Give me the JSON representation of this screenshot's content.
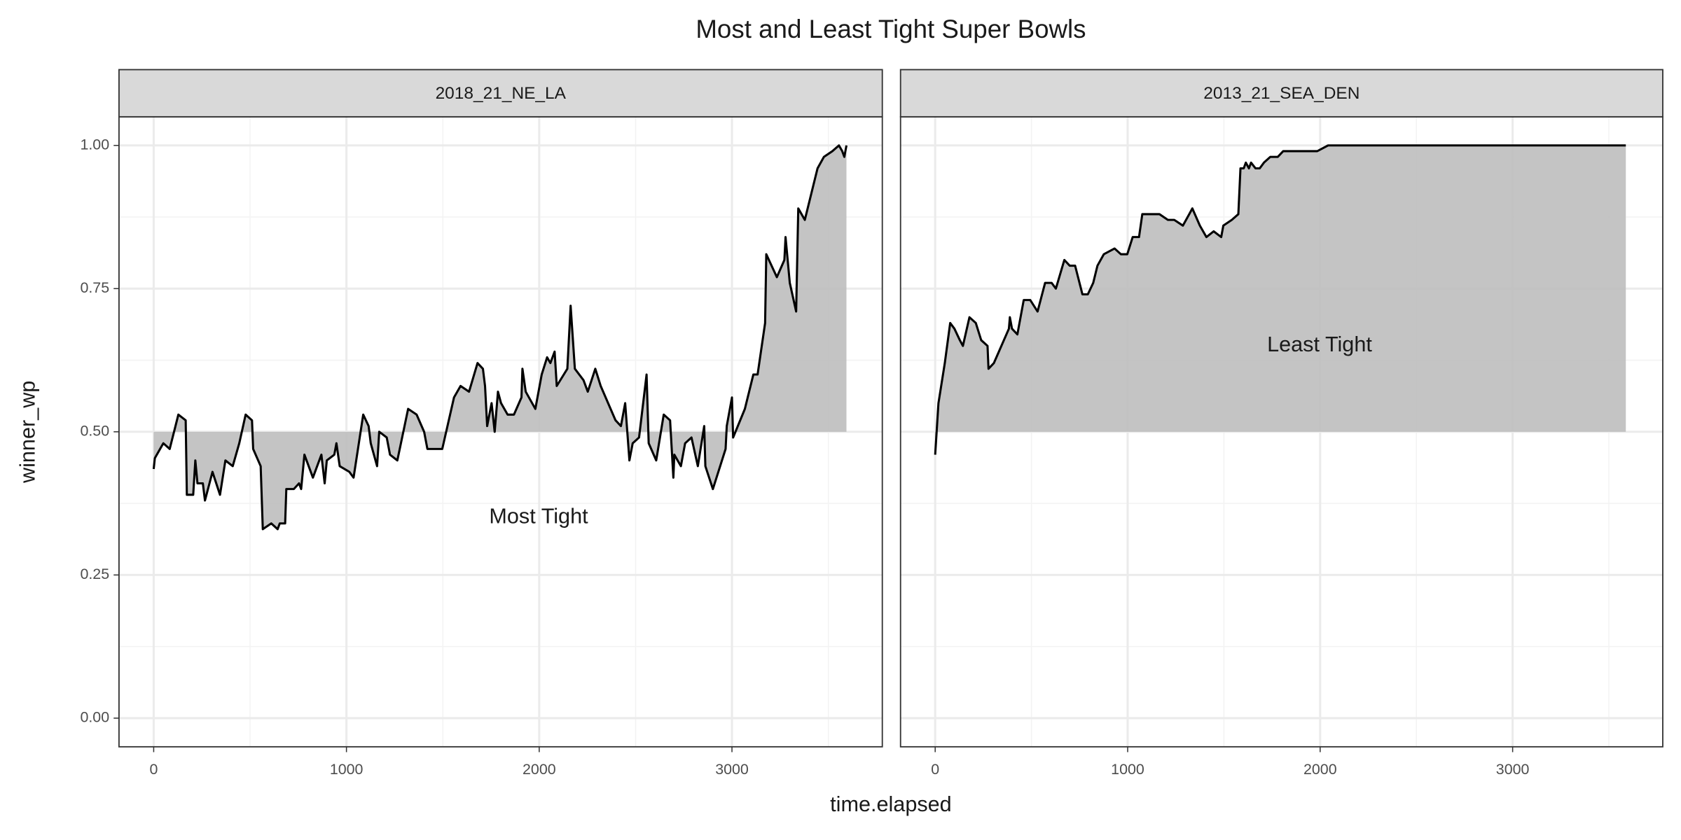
{
  "chart_data": {
    "type": "line",
    "title": "Most and Least Tight Super Bowls",
    "x_label": "time.elapsed",
    "y_label": "winner_wp",
    "xlim": [
      -180,
      3780
    ],
    "xticks": [
      0,
      1000,
      2000,
      3000
    ],
    "ylim": [
      -0.05,
      1.05
    ],
    "yticks": [
      {
        "value": 0,
        "label": "0.00"
      },
      {
        "value": 0.25,
        "label": "0.25"
      },
      {
        "value": 0.5,
        "label": "0.50"
      },
      {
        "value": 0.75,
        "label": "0.75"
      },
      {
        "value": 1,
        "label": "1.00"
      }
    ],
    "grid": true,
    "baseline": 0.5,
    "line_color": "#000000",
    "fill_color": "#bebebe",
    "panels": [
      {
        "title": "2018_21_NE_LA",
        "annotation": {
          "text": "Most Tight",
          "x": 1997,
          "y": 0.35
        },
        "x": [
          0,
          6,
          50,
          83,
          128,
          166,
          172,
          205,
          216,
          227,
          255,
          266,
          305,
          344,
          372,
          410,
          444,
          477,
          510,
          516,
          555,
          566,
          610,
          643,
          654,
          682,
          688,
          727,
          754,
          765,
          782,
          826,
          870,
          887,
          898,
          937,
          948,
          965,
          1015,
          1037,
          1087,
          1115,
          1126,
          1159,
          1170,
          1209,
          1226,
          1264,
          1320,
          1364,
          1403,
          1420,
          1453,
          1497,
          1558,
          1592,
          1636,
          1680,
          1708,
          1719,
          1730,
          1753,
          1769,
          1786,
          1802,
          1836,
          1869,
          1908,
          1913,
          1930,
          1980,
          2013,
          2041,
          2058,
          2080,
          2091,
          2146,
          2163,
          2185,
          2230,
          2252,
          2291,
          2319,
          2396,
          2424,
          2446,
          2468,
          2485,
          2518,
          2557,
          2568,
          2607,
          2646,
          2679,
          2696,
          2701,
          2735,
          2757,
          2790,
          2823,
          2856,
          2862,
          2901,
          2967,
          2973,
          3000,
          3006,
          3067,
          3111,
          3133,
          3172,
          3178,
          3233,
          3272,
          3278,
          3300,
          3333,
          3344,
          3378,
          3422,
          3444,
          3477,
          3521,
          3555,
          3572,
          3583,
          3594
        ],
        "values": [
          0.435,
          0.454,
          0.48,
          0.47,
          0.53,
          0.52,
          0.39,
          0.39,
          0.45,
          0.41,
          0.41,
          0.38,
          0.43,
          0.39,
          0.45,
          0.44,
          0.48,
          0.53,
          0.52,
          0.47,
          0.44,
          0.33,
          0.34,
          0.33,
          0.34,
          0.34,
          0.4,
          0.4,
          0.41,
          0.4,
          0.46,
          0.42,
          0.46,
          0.41,
          0.45,
          0.46,
          0.48,
          0.44,
          0.43,
          0.42,
          0.53,
          0.51,
          0.48,
          0.44,
          0.5,
          0.49,
          0.46,
          0.45,
          0.54,
          0.53,
          0.5,
          0.47,
          0.47,
          0.47,
          0.56,
          0.58,
          0.57,
          0.62,
          0.61,
          0.58,
          0.51,
          0.55,
          0.5,
          0.57,
          0.55,
          0.53,
          0.53,
          0.56,
          0.61,
          0.57,
          0.54,
          0.6,
          0.63,
          0.62,
          0.64,
          0.58,
          0.61,
          0.72,
          0.61,
          0.59,
          0.57,
          0.61,
          0.58,
          0.52,
          0.51,
          0.55,
          0.45,
          0.48,
          0.49,
          0.6,
          0.48,
          0.45,
          0.53,
          0.52,
          0.42,
          0.46,
          0.44,
          0.48,
          0.49,
          0.44,
          0.51,
          0.44,
          0.4,
          0.47,
          0.51,
          0.56,
          0.49,
          0.54,
          0.6,
          0.6,
          0.69,
          0.81,
          0.77,
          0.8,
          0.84,
          0.76,
          0.71,
          0.89,
          0.87,
          0.93,
          0.96,
          0.98,
          0.99,
          1.0,
          0.99,
          0.98,
          1.0
        ]
      },
      {
        "title": "2013_21_SEA_DEN",
        "annotation": {
          "text": "Least Tight",
          "x": 1997,
          "y": 0.65
        },
        "x": [
          0,
          17,
          50,
          78,
          100,
          128,
          144,
          178,
          211,
          239,
          272,
          277,
          305,
          383,
          388,
          399,
          427,
          460,
          494,
          532,
          571,
          605,
          627,
          671,
          699,
          727,
          765,
          793,
          821,
          843,
          876,
          932,
          965,
          998,
          1026,
          1059,
          1076,
          1115,
          1165,
          1209,
          1242,
          1287,
          1320,
          1336,
          1375,
          1409,
          1447,
          1486,
          1497,
          1541,
          1575,
          1586,
          1603,
          1614,
          1630,
          1641,
          1664,
          1686,
          1708,
          1741,
          1780,
          1808,
          1874,
          1930,
          1985,
          2041,
          2263,
          2928,
          3588
        ],
        "values": [
          0.46,
          0.55,
          0.62,
          0.69,
          0.68,
          0.66,
          0.65,
          0.7,
          0.69,
          0.66,
          0.65,
          0.61,
          0.62,
          0.68,
          0.7,
          0.68,
          0.67,
          0.73,
          0.73,
          0.71,
          0.76,
          0.76,
          0.75,
          0.8,
          0.79,
          0.79,
          0.74,
          0.74,
          0.76,
          0.79,
          0.81,
          0.82,
          0.81,
          0.81,
          0.84,
          0.84,
          0.88,
          0.88,
          0.88,
          0.87,
          0.87,
          0.86,
          0.88,
          0.89,
          0.86,
          0.84,
          0.85,
          0.84,
          0.86,
          0.87,
          0.88,
          0.96,
          0.96,
          0.97,
          0.96,
          0.97,
          0.96,
          0.96,
          0.97,
          0.98,
          0.98,
          0.99,
          0.99,
          0.99,
          0.99,
          1.0,
          1.0,
          1.0,
          1.0
        ]
      }
    ]
  }
}
